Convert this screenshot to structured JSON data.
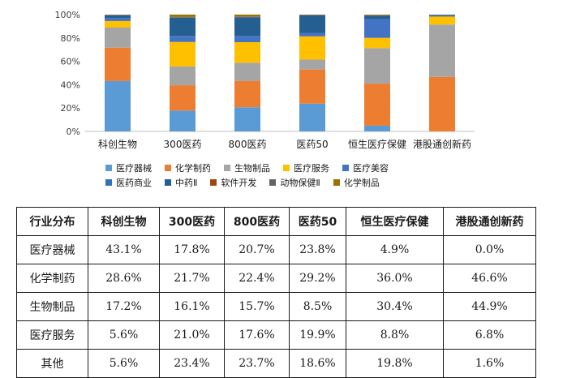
{
  "chart_data": {
    "type": "bar",
    "stacked": true,
    "categories": [
      "科创生物",
      "300医药",
      "800医药",
      "医药50",
      "恒生医疗保健",
      "港股通创新药"
    ],
    "yticks": [
      "0%",
      "20%",
      "40%",
      "60%",
      "80%",
      "100%"
    ],
    "ylim": [
      0,
      100
    ],
    "grid": false,
    "legend_position": "bottom",
    "series": [
      {
        "name": "医疗器械",
        "color": "#5b9bd5",
        "values": [
          43.1,
          17.8,
          20.7,
          23.8,
          4.9,
          0.0
        ]
      },
      {
        "name": "化学制药",
        "color": "#ed7d31",
        "values": [
          28.6,
          21.7,
          22.4,
          29.2,
          36.0,
          46.6
        ]
      },
      {
        "name": "生物制品",
        "color": "#a5a5a5",
        "values": [
          17.2,
          16.1,
          15.7,
          8.5,
          30.4,
          44.9
        ]
      },
      {
        "name": "医疗服务",
        "color": "#ffc000",
        "values": [
          5.6,
          21.0,
          17.6,
          19.9,
          8.8,
          6.8
        ]
      },
      {
        "name": "医疗美容",
        "color": "#4472c4",
        "values": [
          2.6,
          4.5,
          4.8,
          3.0,
          16.0,
          0.6
        ]
      },
      {
        "name": "医药商业",
        "color": "#2e75b6",
        "values": [
          0.0,
          0.4,
          0.5,
          0.0,
          0.0,
          0.0
        ]
      },
      {
        "name": "中药Ⅱ",
        "color": "#255e91",
        "values": [
          2.4,
          16.0,
          16.0,
          15.0,
          3.0,
          0.8
        ]
      },
      {
        "name": "软件开发",
        "color": "#9e480e",
        "values": [
          0.3,
          0.2,
          0.3,
          0.0,
          0.3,
          0.1
        ]
      },
      {
        "name": "动物保健Ⅱ",
        "color": "#636363",
        "values": [
          0.1,
          0.3,
          0.5,
          0.3,
          0.2,
          0.1
        ]
      },
      {
        "name": "化学制品",
        "color": "#997300",
        "values": [
          0.1,
          2.0,
          1.5,
          0.3,
          0.4,
          0.1
        ]
      }
    ]
  },
  "table": {
    "headers": [
      "行业分布",
      "科创生物",
      "300医药",
      "800医药",
      "医药50",
      "恒生医疗保健",
      "港股通创新药"
    ],
    "rows": [
      [
        "医疗器械",
        "43.1%",
        "17.8%",
        "20.7%",
        "23.8%",
        "4.9%",
        "0.0%"
      ],
      [
        "化学制药",
        "28.6%",
        "21.7%",
        "22.4%",
        "29.2%",
        "36.0%",
        "46.6%"
      ],
      [
        "生物制品",
        "17.2%",
        "16.1%",
        "15.7%",
        "8.5%",
        "30.4%",
        "44.9%"
      ],
      [
        "医疗服务",
        "5.6%",
        "21.0%",
        "17.6%",
        "19.9%",
        "8.8%",
        "6.8%"
      ],
      [
        "其他",
        "5.6%",
        "23.4%",
        "23.7%",
        "18.6%",
        "19.8%",
        "1.6%"
      ]
    ]
  }
}
